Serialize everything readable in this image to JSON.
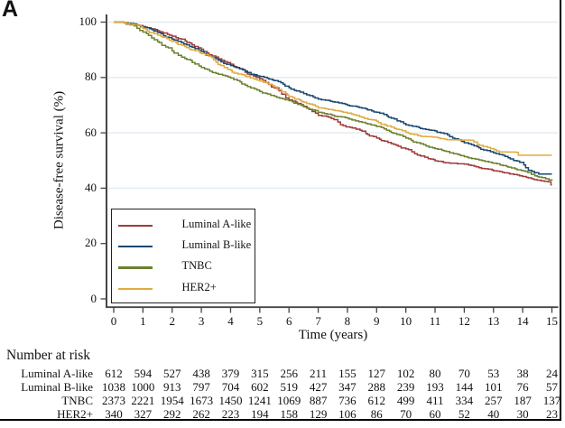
{
  "panel_label": "A",
  "chart_data": {
    "type": "line",
    "subtype": "kaplan-meier-step",
    "xlabel": "Time (years)",
    "ylabel": "Disease-free survival (%)",
    "xlim": [
      0,
      15
    ],
    "ylim": [
      0,
      100
    ],
    "x_ticks": [
      0,
      1,
      2,
      3,
      4,
      5,
      6,
      7,
      8,
      9,
      10,
      11,
      12,
      13,
      14,
      15
    ],
    "y_ticks": [
      0,
      20,
      40,
      60,
      80,
      100
    ],
    "grid_ticks": [
      40,
      60,
      80,
      100
    ],
    "grid": "horizontal",
    "gridline_color": "#e2eaf0",
    "axis_color": "#454545",
    "legend_position": "lower-left-inside",
    "series": [
      {
        "name": "Luminal A-like",
        "color": "#9e3a3a",
        "km_points": [
          [
            0,
            100
          ],
          [
            0.35,
            99.8
          ],
          [
            0.7,
            99.2
          ],
          [
            1,
            98.4
          ],
          [
            1.5,
            96.9
          ],
          [
            2,
            94.9
          ],
          [
            2.5,
            92.7
          ],
          [
            3,
            90.2
          ],
          [
            3.5,
            87.4
          ],
          [
            4,
            84.8
          ],
          [
            4.5,
            81.9
          ],
          [
            5,
            79.5
          ],
          [
            5.5,
            76.2
          ],
          [
            5.75,
            74.0
          ],
          [
            6,
            71.9
          ],
          [
            6.5,
            69.6
          ],
          [
            7,
            66.3
          ],
          [
            7.45,
            65.2
          ],
          [
            7.85,
            62.6
          ],
          [
            8.5,
            60.6
          ],
          [
            9,
            58.1
          ],
          [
            9.5,
            56.1
          ],
          [
            10,
            54.2
          ],
          [
            10.5,
            51.6
          ],
          [
            11,
            49.9
          ],
          [
            11.5,
            49.0
          ],
          [
            12,
            48.7
          ],
          [
            12.5,
            47.4
          ],
          [
            13,
            46.3
          ],
          [
            13.5,
            45.4
          ],
          [
            14,
            44.2
          ],
          [
            14.5,
            42.9
          ],
          [
            14.88,
            42.3
          ],
          [
            14.97,
            41.2
          ],
          [
            15,
            41.2
          ]
        ]
      },
      {
        "name": "Luminal B-like",
        "color": "#1a476f",
        "km_points": [
          [
            0,
            100
          ],
          [
            0.35,
            99.8
          ],
          [
            0.7,
            99.3
          ],
          [
            1,
            98.2
          ],
          [
            1.5,
            96.2
          ],
          [
            2,
            93.9
          ],
          [
            2.5,
            91.8
          ],
          [
            3,
            89.4
          ],
          [
            3.5,
            86.8
          ],
          [
            4,
            84.3
          ],
          [
            4.5,
            82.3
          ],
          [
            5,
            80.4
          ],
          [
            5.5,
            78.9
          ],
          [
            6,
            76.3
          ],
          [
            6.5,
            74.2
          ],
          [
            7,
            72.2
          ],
          [
            7.5,
            71.2
          ],
          [
            8,
            70.0
          ],
          [
            8.5,
            68.9
          ],
          [
            9,
            67.4
          ],
          [
            9.5,
            65.3
          ],
          [
            10,
            62.9
          ],
          [
            10.5,
            61.6
          ],
          [
            11,
            60.7
          ],
          [
            11.5,
            58.6
          ],
          [
            12,
            56.4
          ],
          [
            12.5,
            54.6
          ],
          [
            13,
            52.8
          ],
          [
            13.5,
            51.0
          ],
          [
            13.8,
            49.8
          ],
          [
            14.1,
            47.4
          ],
          [
            14.4,
            45.6
          ],
          [
            14.55,
            45.1
          ],
          [
            15,
            45.1
          ]
        ]
      },
      {
        "name": "TNBC",
        "color": "#6b812f",
        "km_points": [
          [
            0,
            100
          ],
          [
            0.35,
            99.7
          ],
          [
            0.7,
            98.6
          ],
          [
            1,
            96.4
          ],
          [
            1.5,
            93.0
          ],
          [
            2,
            89.6
          ],
          [
            2.5,
            86.5
          ],
          [
            3,
            83.6
          ],
          [
            3.5,
            81.5
          ],
          [
            4,
            79.8
          ],
          [
            4.5,
            77.2
          ],
          [
            5,
            74.9
          ],
          [
            5.5,
            73.2
          ],
          [
            6,
            71.6
          ],
          [
            6.5,
            69.4
          ],
          [
            7,
            67.4
          ],
          [
            7.5,
            66.3
          ],
          [
            8,
            65.3
          ],
          [
            8.5,
            63.8
          ],
          [
            9,
            62.3
          ],
          [
            9.5,
            60.1
          ],
          [
            10,
            58.1
          ],
          [
            10.5,
            56.1
          ],
          [
            11,
            54.3
          ],
          [
            11.5,
            52.8
          ],
          [
            12,
            51.4
          ],
          [
            12.5,
            50.2
          ],
          [
            13,
            49.0
          ],
          [
            13.5,
            47.6
          ],
          [
            14,
            46.3
          ],
          [
            14.5,
            44.2
          ],
          [
            14.9,
            43.0
          ],
          [
            15,
            42.7
          ]
        ]
      },
      {
        "name": "HER2+",
        "color": "#dfab40",
        "km_points": [
          [
            0,
            100
          ],
          [
            0.35,
            99.8
          ],
          [
            0.7,
            99.0
          ],
          [
            1,
            97.7
          ],
          [
            1.5,
            95.3
          ],
          [
            2,
            93.0
          ],
          [
            2.5,
            90.8
          ],
          [
            3,
            88.6
          ],
          [
            3.5,
            85.5
          ],
          [
            4,
            82.6
          ],
          [
            4.5,
            80.5
          ],
          [
            5,
            78.7
          ],
          [
            5.5,
            76.6
          ],
          [
            6,
            73.1
          ],
          [
            6.5,
            71.1
          ],
          [
            7,
            69.0
          ],
          [
            7.5,
            68.2
          ],
          [
            8,
            67.1
          ],
          [
            8.5,
            65.6
          ],
          [
            9,
            64.2
          ],
          [
            9.5,
            62.1
          ],
          [
            10,
            60.2
          ],
          [
            10.5,
            58.8
          ],
          [
            11,
            58.4
          ],
          [
            11.4,
            57.5
          ],
          [
            12.2,
            57.3
          ],
          [
            12.45,
            55.8
          ],
          [
            12.9,
            54.3
          ],
          [
            13.2,
            53.1
          ],
          [
            13.75,
            53.0
          ],
          [
            13.85,
            51.9
          ],
          [
            15,
            51.9
          ]
        ]
      }
    ]
  },
  "risk_table": {
    "header": "Number at risk",
    "years": [
      0,
      1,
      2,
      3,
      4,
      5,
      6,
      7,
      8,
      9,
      10,
      11,
      12,
      13,
      14,
      15
    ],
    "rows": [
      {
        "label": "Luminal A-like",
        "values": [
          612,
          594,
          527,
          438,
          379,
          315,
          256,
          211,
          155,
          127,
          102,
          80,
          70,
          53,
          38,
          24
        ]
      },
      {
        "label": "Luminal B-like",
        "values": [
          1038,
          1000,
          913,
          797,
          704,
          602,
          519,
          427,
          347,
          288,
          239,
          193,
          144,
          101,
          76,
          57
        ]
      },
      {
        "label": "TNBC",
        "values": [
          2373,
          2221,
          1954,
          1673,
          1450,
          1241,
          1069,
          887,
          736,
          612,
          499,
          411,
          334,
          257,
          187,
          137
        ]
      },
      {
        "label": "HER2+",
        "values": [
          340,
          327,
          292,
          262,
          223,
          194,
          158,
          129,
          106,
          86,
          70,
          60,
          52,
          40,
          30,
          23
        ]
      }
    ]
  }
}
